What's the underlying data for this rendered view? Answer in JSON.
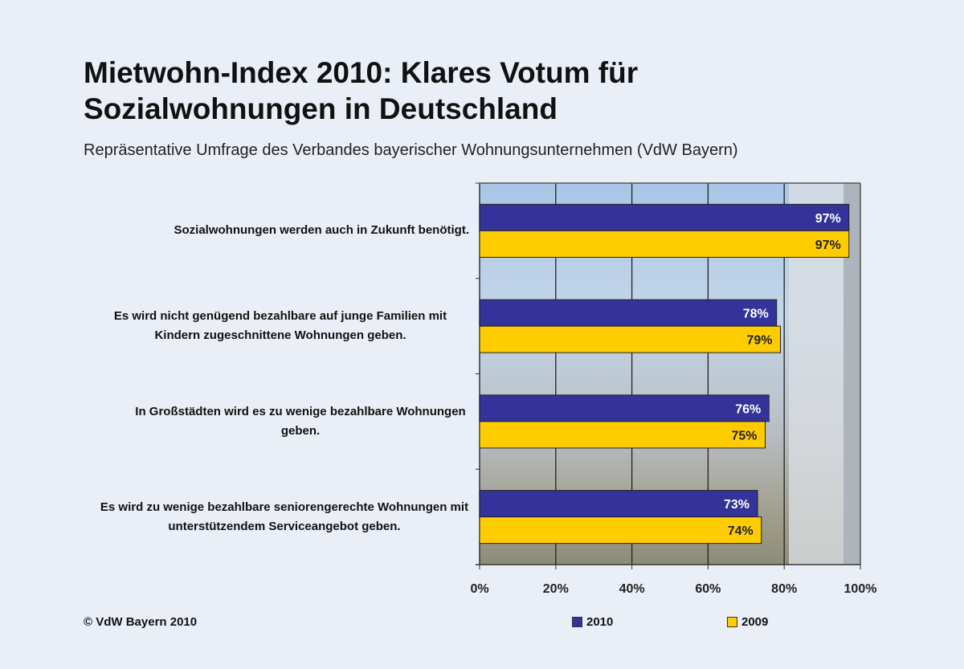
{
  "header": {
    "title_line1": "Mietwohn-Index 2010: Klares Votum für",
    "title_line2": "Sozialwohnungen in Deutschland",
    "subtitle": "Repräsentative Umfrage des Verbandes bayerischer Wohnungsunternehmen (VdW Bayern)"
  },
  "footer": {
    "copyright": "© VdW Bayern 2010"
  },
  "chart_data": {
    "type": "bar",
    "orientation": "horizontal",
    "title": "Mietwohn-Index 2010: Klares Votum für Sozialwohnungen in Deutschland",
    "subtitle": "Repräsentative Umfrage des Verbandes bayerischer Wohnungsunternehmen (VdW Bayern)",
    "categories": [
      "Sozialwohnungen werden auch in Zukunft benötigt.",
      "Es wird nicht genügend bezahlbare auf junge Familien mit Kindern zugeschnittene Wohnungen geben.",
      "In Großstädten wird es zu wenige bezahlbare Wohnungen geben.",
      "Es wird zu wenige bezahlbare seniorengerechte Wohnungen mit unterstützendem Serviceangebot geben."
    ],
    "series": [
      {
        "name": "2010",
        "values": [
          97,
          78,
          76,
          73
        ],
        "color": "#33339a",
        "label_color": "#ffffff"
      },
      {
        "name": "2009",
        "values": [
          97,
          79,
          75,
          74
        ],
        "color": "#ffcc00",
        "label_color": "#222222"
      }
    ],
    "xlim": [
      0,
      100
    ],
    "xticks": [
      "0%",
      "20%",
      "40%",
      "60%",
      "80%",
      "100%"
    ],
    "grid": true,
    "legend": "bottom",
    "background": "photo of apartment buildings"
  }
}
